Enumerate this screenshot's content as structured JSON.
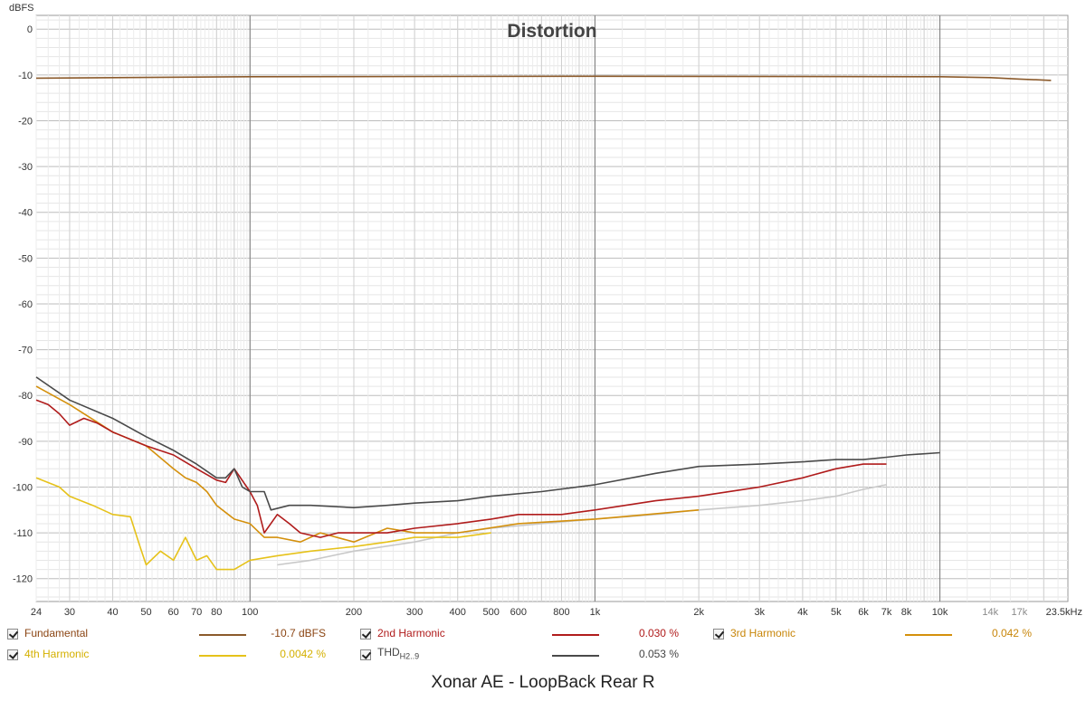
{
  "chart_data": {
    "type": "line",
    "title": "Distortion",
    "ylabel": "dBFS",
    "xlabel": "",
    "x_scale": "log",
    "xlim": [
      24,
      23500
    ],
    "ylim": [
      -125,
      3
    ],
    "grid": true,
    "y_ticks": [
      0,
      -10,
      -20,
      -30,
      -40,
      -50,
      -60,
      -70,
      -80,
      -90,
      -100,
      -110,
      -120
    ],
    "x_ticks": [
      {
        "v": 24,
        "label": "24"
      },
      {
        "v": 30,
        "label": "30"
      },
      {
        "v": 40,
        "label": "40"
      },
      {
        "v": 50,
        "label": "50"
      },
      {
        "v": 60,
        "label": "60"
      },
      {
        "v": 70,
        "label": "70"
      },
      {
        "v": 80,
        "label": "80"
      },
      {
        "v": 100,
        "label": "100"
      },
      {
        "v": 200,
        "label": "200"
      },
      {
        "v": 300,
        "label": "300"
      },
      {
        "v": 400,
        "label": "400"
      },
      {
        "v": 500,
        "label": "500"
      },
      {
        "v": 600,
        "label": "600"
      },
      {
        "v": 800,
        "label": "800"
      },
      {
        "v": 1000,
        "label": "1k"
      },
      {
        "v": 2000,
        "label": "2k"
      },
      {
        "v": 3000,
        "label": "3k"
      },
      {
        "v": 4000,
        "label": "4k"
      },
      {
        "v": 5000,
        "label": "5k"
      },
      {
        "v": 6000,
        "label": "6k"
      },
      {
        "v": 7000,
        "label": "7k"
      },
      {
        "v": 8000,
        "label": "8k"
      },
      {
        "v": 10000,
        "label": "10k"
      },
      {
        "v": 14000,
        "label": "14k",
        "faded": true
      },
      {
        "v": 17000,
        "label": "17k",
        "faded": true
      },
      {
        "v": 23500,
        "label": "23.5kHz"
      }
    ],
    "series": [
      {
        "name": "Fundamental",
        "color": "#8b5a2b",
        "x": [
          24,
          100,
          1000,
          10000,
          14000,
          17000,
          21000
        ],
        "y": [
          -10.7,
          -10.4,
          -10.3,
          -10.4,
          -10.6,
          -10.9,
          -11.2
        ]
      },
      {
        "name": "THD",
        "color": "#4a4a4a",
        "x": [
          24,
          30,
          40,
          50,
          60,
          70,
          80,
          85,
          90,
          95,
          100,
          110,
          115,
          130,
          150,
          200,
          250,
          300,
          400,
          500,
          700,
          1000,
          1500,
          2000,
          3000,
          4000,
          5000,
          6000,
          7000,
          8000,
          10000
        ],
        "y": [
          -76,
          -81,
          -85,
          -89,
          -92,
          -95,
          -98,
          -98,
          -96,
          -100,
          -101,
          -101,
          -105,
          -104,
          -104,
          -104.5,
          -104,
          -103.5,
          -103,
          -102,
          -101,
          -99.5,
          -97,
          -95.5,
          -95,
          -94.5,
          -94,
          -94,
          -93.5,
          -93,
          -92.5
        ]
      },
      {
        "name": "2nd Harmonic",
        "color": "#b01c1c",
        "x": [
          24,
          26,
          28,
          30,
          33,
          36,
          40,
          50,
          60,
          70,
          80,
          85,
          90,
          100,
          105,
          110,
          120,
          130,
          140,
          160,
          180,
          200,
          250,
          300,
          400,
          500,
          600,
          800,
          1000,
          1500,
          2000,
          3000,
          4000,
          5000,
          6000,
          7000
        ],
        "y": [
          -81,
          -82,
          -84,
          -86.5,
          -85,
          -86,
          -88,
          -91,
          -93,
          -96,
          -98.5,
          -99,
          -96,
          -101,
          -104,
          -110,
          -106,
          -108,
          -110,
          -111,
          -110,
          -110,
          -110,
          -109,
          -108,
          -107,
          -106,
          -106,
          -105,
          -103,
          -102,
          -100,
          -98,
          -96,
          -95,
          -95
        ]
      },
      {
        "name": "3rd Harmonic",
        "color": "#d4900c",
        "x": [
          24,
          30,
          40,
          50,
          60,
          65,
          70,
          75,
          80,
          90,
          100,
          110,
          120,
          140,
          160,
          200,
          250,
          300,
          400,
          600,
          1000,
          2000
        ],
        "y": [
          -78,
          -82,
          -88,
          -91,
          -96,
          -98,
          -99,
          -101,
          -104,
          -107,
          -108,
          -111,
          -111,
          -112,
          -110,
          -112,
          -109,
          -110,
          -110,
          -108,
          -107,
          -105
        ]
      },
      {
        "name": "4th Harmonic",
        "color": "#e6c21a",
        "x": [
          24,
          28,
          30,
          35,
          40,
          45,
          48,
          50,
          55,
          60,
          65,
          70,
          75,
          80,
          90,
          100,
          120,
          150,
          200,
          250,
          300,
          400,
          500
        ],
        "y": [
          -98,
          -100,
          -102,
          -104,
          -106,
          -106.5,
          -113,
          -117,
          -114,
          -116,
          -111,
          -116,
          -115,
          -118,
          -118,
          -116,
          -115,
          -114,
          -113,
          -112,
          -111,
          -111,
          -110
        ]
      },
      {
        "name": "THD H2..9 (light)",
        "color": "#c8c8c8",
        "x": [
          120,
          150,
          200,
          300,
          400,
          500,
          700,
          1000,
          1500,
          2000,
          3000,
          4000,
          5000,
          6000,
          7000
        ],
        "y": [
          -117,
          -116,
          -114,
          -112,
          -110,
          -109,
          -108,
          -107,
          -106,
          -105,
          -104,
          -103,
          -102,
          -100.5,
          -99.5
        ]
      }
    ]
  },
  "legend": {
    "row1": [
      {
        "name": "Fundamental",
        "value": "-10.7 dBFS",
        "color": "#8b5a2b",
        "text_color": "#8b4513"
      },
      {
        "name": "2nd Harmonic",
        "value": "0.030 %",
        "color": "#b01c1c",
        "text_color": "#b01c1c"
      },
      {
        "name": "3rd Harmonic",
        "value": "0.042 %",
        "color": "#d4900c",
        "text_color": "#c8860a"
      }
    ],
    "row2": [
      {
        "name": "4th Harmonic",
        "value": "0.0042 %",
        "color": "#e6c21a",
        "text_color": "#d4b000"
      },
      {
        "name": "THD",
        "sub": "H2..9",
        "value": "0.053 %",
        "color": "#4a4a4a",
        "text_color": "#444444"
      }
    ]
  },
  "footer": "Xonar AE - LoopBack Rear R"
}
